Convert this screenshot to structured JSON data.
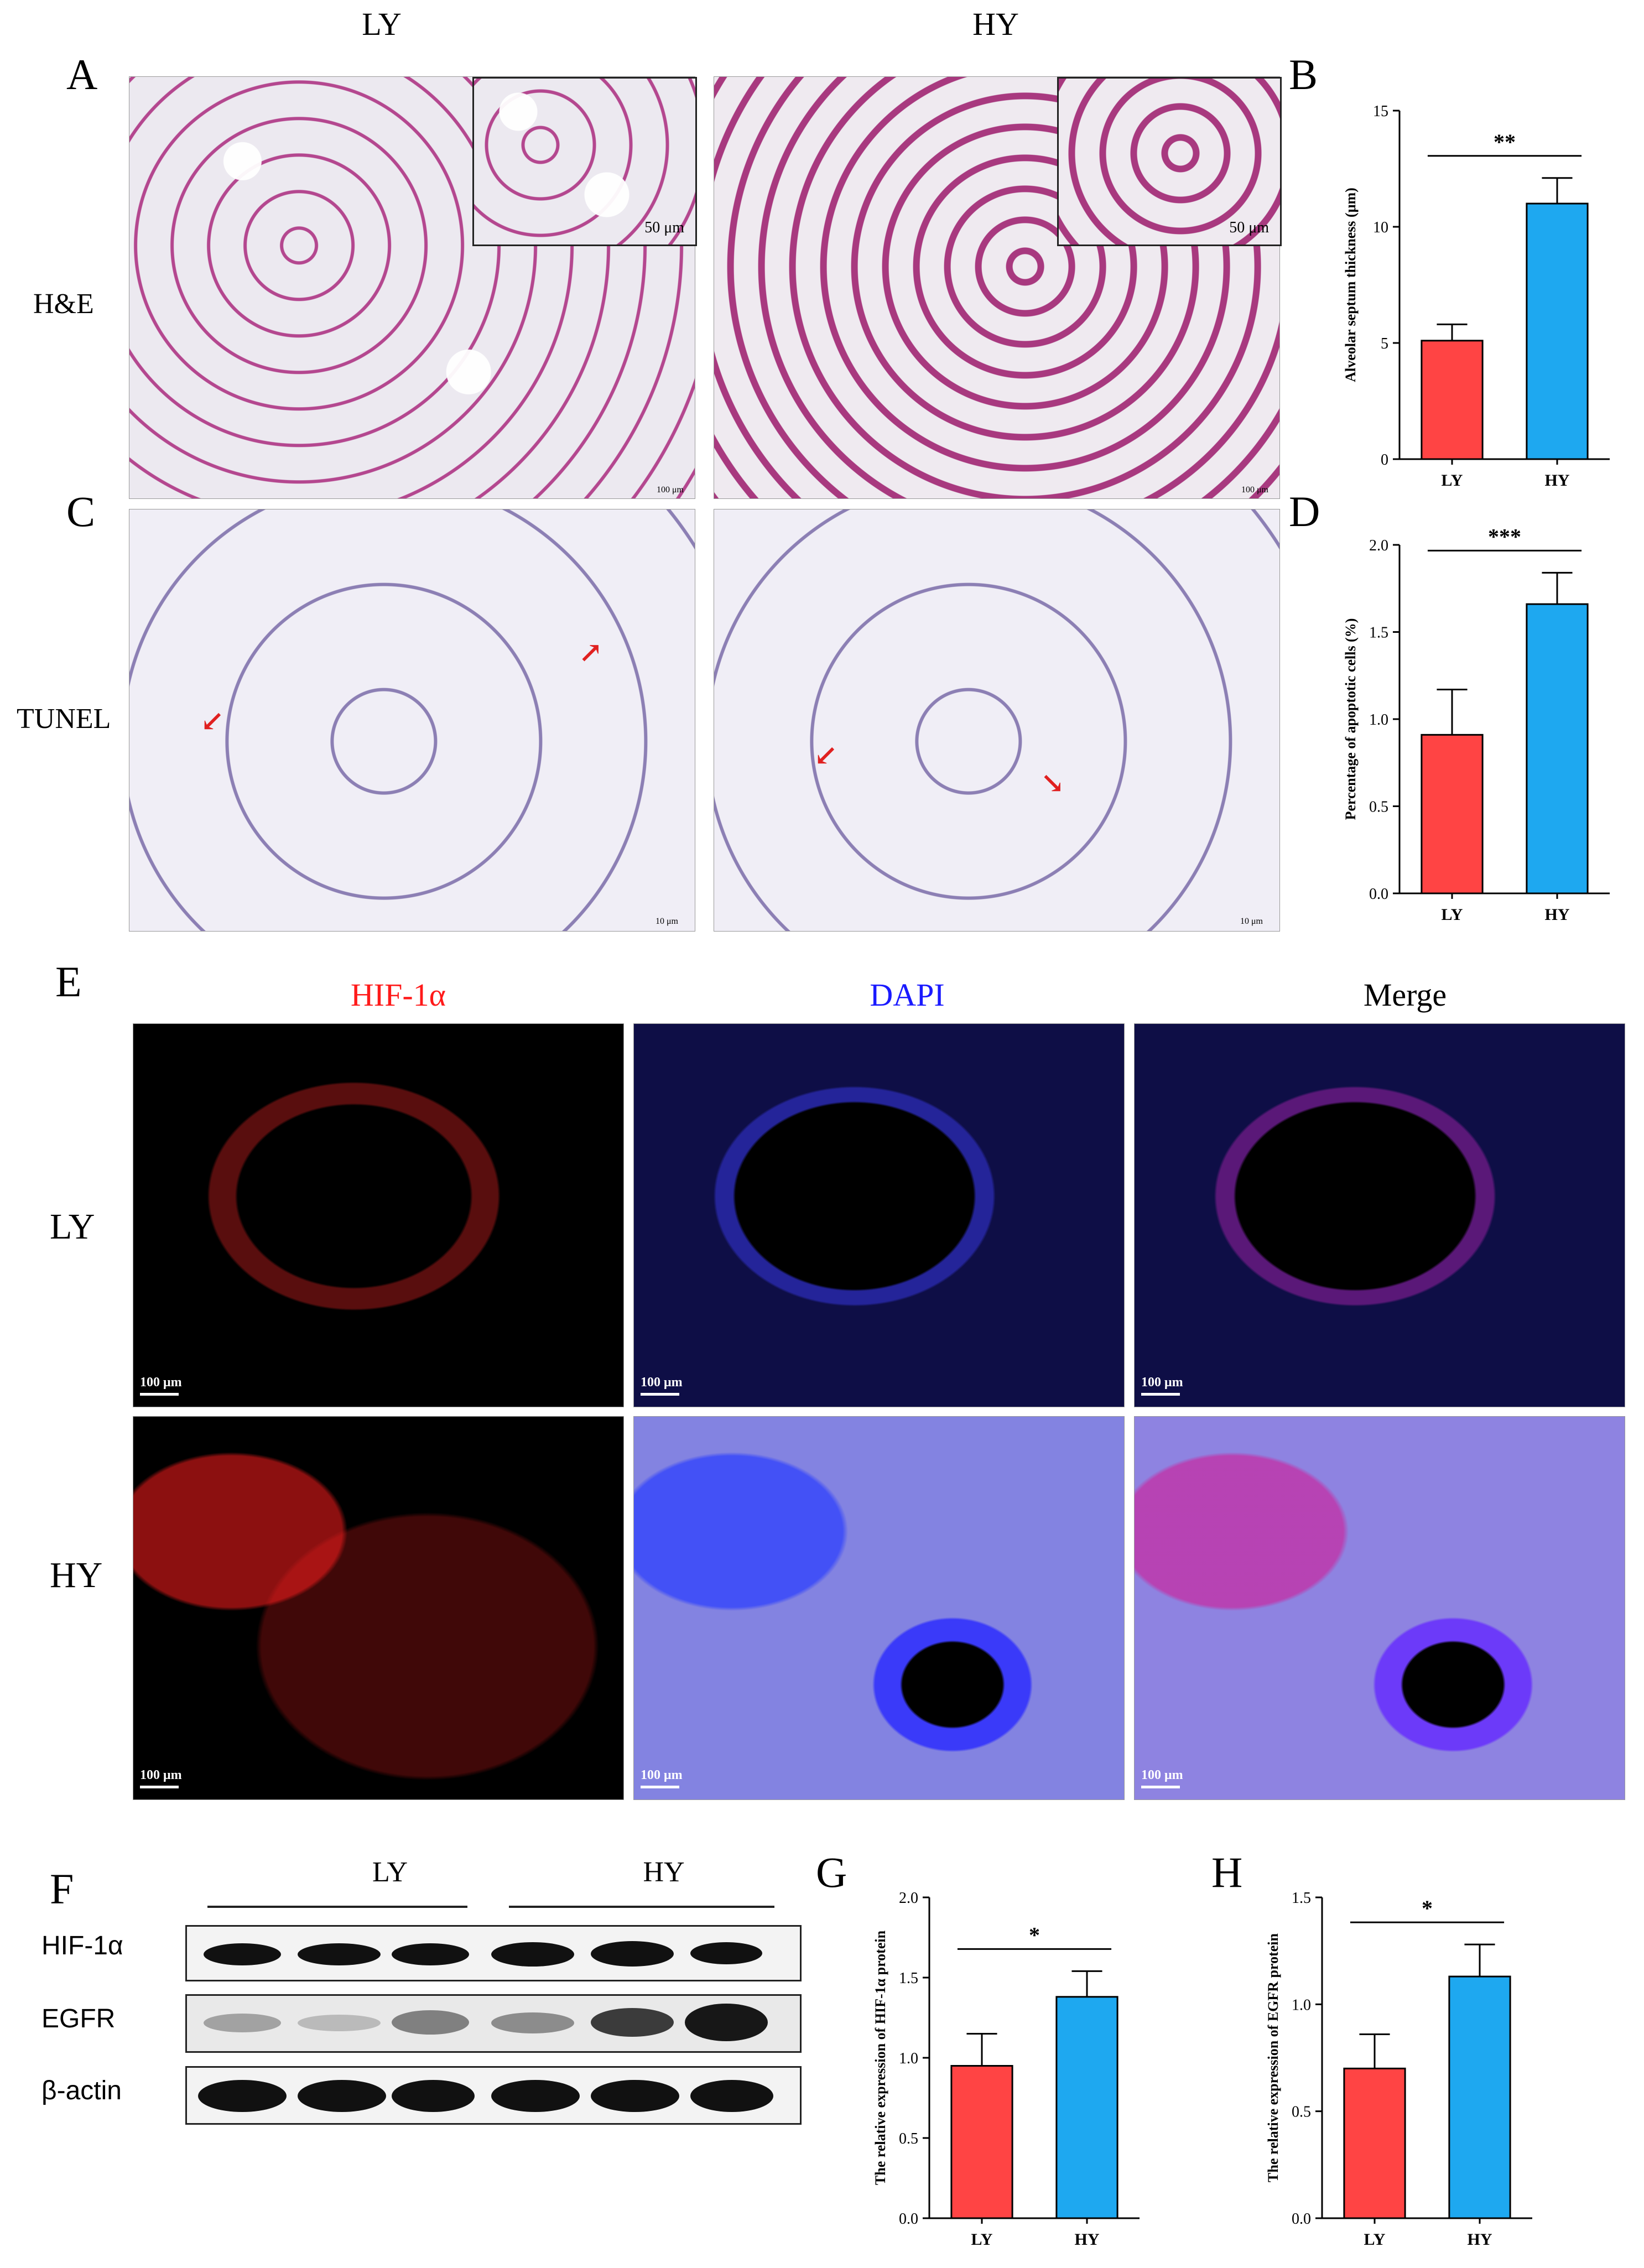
{
  "panels": {
    "A": "A",
    "B": "B",
    "C": "C",
    "D": "D",
    "E": "E",
    "F": "F",
    "G": "G",
    "H": "H"
  },
  "histology": {
    "col_labels": [
      "LY",
      "HY"
    ],
    "row_labels": [
      "H&E",
      "TUNEL"
    ],
    "he_scalebar_inset": "50 μm",
    "he_scalebar_main": "100 μm",
    "tunel_scalebar": "10 μm"
  },
  "immunofluorescence": {
    "channels": [
      "HIF-1α",
      "DAPI",
      "Merge"
    ],
    "rows": [
      "LY",
      "HY"
    ],
    "scalebar": "100 μm",
    "colors": {
      "hif": "#ff1a1a",
      "dapi": "#1a1aff",
      "merge": "#000000"
    }
  },
  "western_blot": {
    "groups": [
      "LY",
      "HY"
    ],
    "proteins": [
      "HIF-1α",
      "EGFR",
      "β-actin"
    ]
  },
  "colors": {
    "LY": "#ff4444",
    "HY": "#1ea8f0"
  },
  "chart_data": [
    {
      "id": "B",
      "type": "bar",
      "categories": [
        "LY",
        "HY"
      ],
      "values": [
        5.1,
        11.0
      ],
      "errors": [
        0.7,
        1.1
      ],
      "ylabel": "Alveolar septum thickness (μm)",
      "ylim": [
        0,
        15
      ],
      "yticks": [
        0,
        5,
        10,
        15
      ],
      "significance": "**"
    },
    {
      "id": "D",
      "type": "bar",
      "categories": [
        "LY",
        "HY"
      ],
      "values": [
        0.91,
        1.66
      ],
      "errors": [
        0.26,
        0.18
      ],
      "ylabel": "Percentage of apoptotic cells (%)",
      "ylim": [
        0,
        2.0
      ],
      "yticks": [
        0.0,
        0.5,
        1.0,
        1.5,
        2.0
      ],
      "significance": "***"
    },
    {
      "id": "G",
      "type": "bar",
      "categories": [
        "LY",
        "HY"
      ],
      "values": [
        0.95,
        1.38
      ],
      "errors": [
        0.2,
        0.16
      ],
      "ylabel": "The relative expression of HIF-1α protein",
      "ylim": [
        0,
        2.0
      ],
      "yticks": [
        0.0,
        0.5,
        1.0,
        1.5,
        2.0
      ],
      "significance": "*"
    },
    {
      "id": "H",
      "type": "bar",
      "categories": [
        "LY",
        "HY"
      ],
      "values": [
        0.7,
        1.13
      ],
      "errors": [
        0.16,
        0.15
      ],
      "ylabel": "The relative expression of EGFR protein",
      "ylim": [
        0,
        1.5
      ],
      "yticks": [
        0.0,
        0.5,
        1.0,
        1.5
      ],
      "significance": "*"
    }
  ]
}
